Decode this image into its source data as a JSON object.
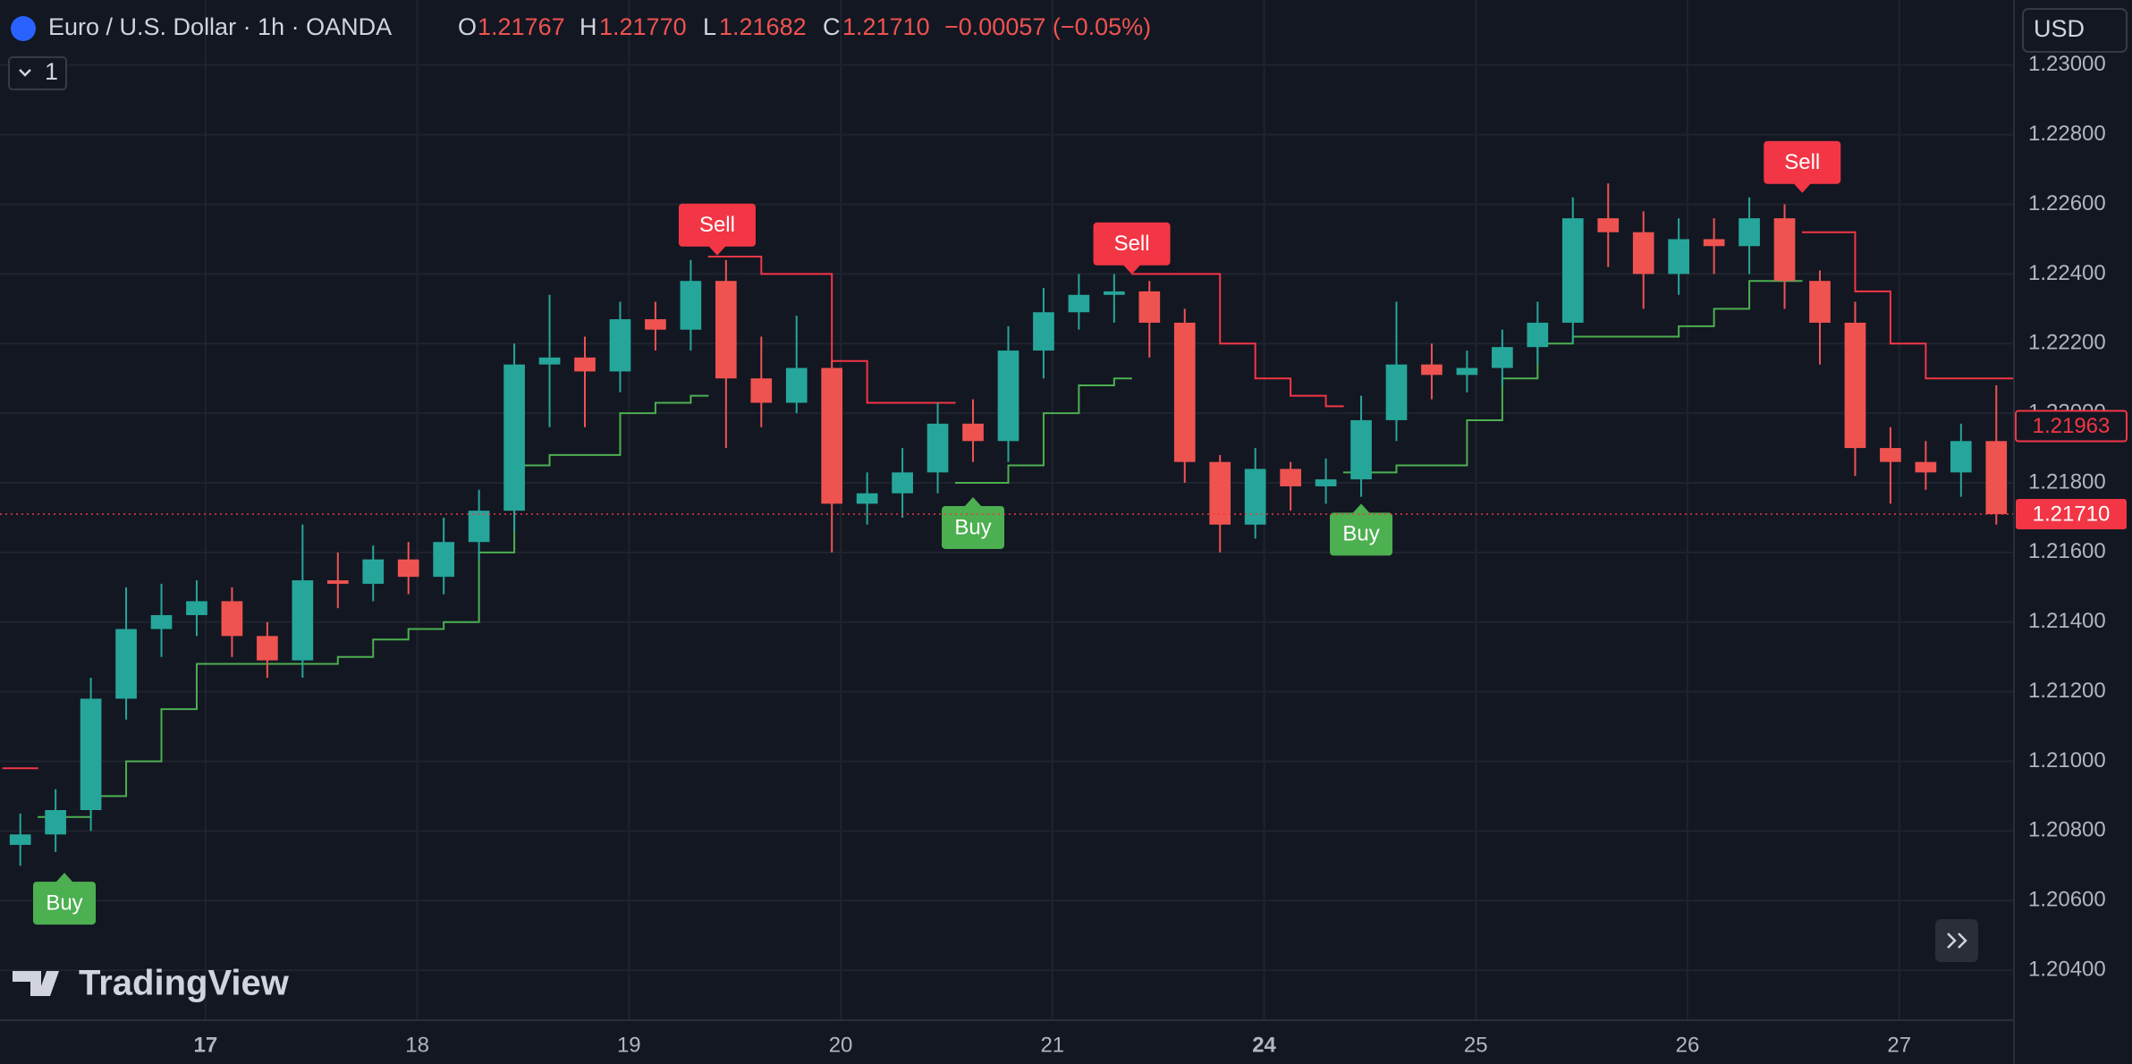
{
  "chart_data": {
    "type": "candlestick",
    "header": {
      "symbol": "Euro / U.S. Dollar · 1h · OANDA",
      "o_label": "O",
      "o": "1.21767",
      "h_label": "H",
      "h": "1.21770",
      "l_label": "L",
      "l": "1.21682",
      "c_label": "C",
      "c": "1.21710",
      "change": "−0.00057 (−0.05%)",
      "interval_count": "1",
      "currency": "USD",
      "brand": "TradingView"
    },
    "x": [
      -21,
      -17,
      -13,
      -9,
      -5,
      -1,
      3,
      7,
      11,
      15,
      19,
      23,
      27,
      31,
      35,
      39,
      43,
      47,
      51,
      55,
      59,
      63,
      67,
      71,
      75,
      79,
      83,
      87,
      91,
      95,
      99,
      103,
      107,
      111,
      115,
      119,
      123,
      127,
      131,
      135,
      139,
      143,
      147,
      151,
      155,
      159,
      163,
      167,
      171,
      175,
      179,
      183,
      187,
      191,
      195,
      199,
      203
    ],
    "opens": [
      1.2076,
      1.2079,
      1.2086,
      1.2118,
      1.2138,
      1.2142,
      1.2146,
      1.2136,
      1.2129,
      1.2152,
      1.2151,
      1.2158,
      1.2153,
      1.2163,
      1.2172,
      1.2214,
      1.2216,
      1.2212,
      1.2227,
      1.2224,
      1.2238,
      1.221,
      1.2203,
      1.2213,
      1.2174,
      1.2177,
      1.2183,
      1.2197,
      1.2192,
      1.2218,
      1.2229,
      1.2234,
      1.2235,
      1.2226,
      1.2186,
      1.2168,
      1.2184,
      1.2179,
      1.2181,
      1.2198,
      1.2214,
      1.2211,
      1.2213,
      1.2219,
      1.2226,
      1.2256,
      1.2252,
      1.224,
      1.225,
      1.2248,
      1.2256,
      1.2238,
      1.2226,
      1.219,
      1.2186,
      1.2183,
      1.2192
    ],
    "highs": [
      1.2085,
      1.2092,
      1.2124,
      1.215,
      1.2151,
      1.2152,
      1.215,
      1.214,
      1.2168,
      1.216,
      1.2162,
      1.2163,
      1.217,
      1.2178,
      1.222,
      1.2234,
      1.2222,
      1.2232,
      1.2232,
      1.2244,
      1.2244,
      1.2222,
      1.2228,
      1.2215,
      1.2183,
      1.219,
      1.2203,
      1.2204,
      1.2225,
      1.2236,
      1.224,
      1.224,
      1.2238,
      1.223,
      1.2188,
      1.219,
      1.2186,
      1.2187,
      1.2205,
      1.2232,
      1.222,
      1.2218,
      1.2224,
      1.2232,
      1.2262,
      1.2266,
      1.2258,
      1.2256,
      1.2256,
      1.2262,
      1.226,
      1.2241,
      1.2232,
      1.2196,
      1.2192,
      1.2197,
      1.2208
    ],
    "lows": [
      1.207,
      1.2074,
      1.208,
      1.2112,
      1.213,
      1.2136,
      1.213,
      1.2124,
      1.2124,
      1.2144,
      1.2146,
      1.2148,
      1.2148,
      1.2158,
      1.2166,
      1.2196,
      1.2196,
      1.2206,
      1.2218,
      1.2218,
      1.219,
      1.2196,
      1.22,
      1.216,
      1.2168,
      1.217,
      1.2177,
      1.2186,
      1.2186,
      1.221,
      1.2224,
      1.2226,
      1.2216,
      1.218,
      1.216,
      1.2164,
      1.2172,
      1.2174,
      1.2176,
      1.2192,
      1.2204,
      1.2206,
      1.2208,
      1.2214,
      1.222,
      1.2242,
      1.223,
      1.2234,
      1.224,
      1.224,
      1.223,
      1.2214,
      1.2182,
      1.2174,
      1.2178,
      1.2176,
      1.2168
    ],
    "closes": [
      1.2079,
      1.2086,
      1.2118,
      1.2138,
      1.2142,
      1.2146,
      1.2136,
      1.2129,
      1.2152,
      1.2151,
      1.2158,
      1.2153,
      1.2163,
      1.2172,
      1.2214,
      1.2216,
      1.2212,
      1.2227,
      1.2224,
      1.2238,
      1.221,
      1.2203,
      1.2213,
      1.2174,
      1.2177,
      1.2183,
      1.2197,
      1.2192,
      1.2218,
      1.2229,
      1.2234,
      1.2235,
      1.2226,
      1.2186,
      1.2168,
      1.2184,
      1.2179,
      1.2181,
      1.2198,
      1.2214,
      1.2211,
      1.2213,
      1.2219,
      1.2226,
      1.2256,
      1.2252,
      1.224,
      1.225,
      1.2248,
      1.2256,
      1.2238,
      1.2226,
      1.219,
      1.2186,
      1.2183,
      1.2192,
      1.2171
    ],
    "up_color": "#26a69a",
    "down_color": "#ef5350",
    "series": [
      {
        "color": "#4caf50",
        "values": [
          null,
          1.2084,
          1.209,
          1.21,
          1.2115,
          1.2128,
          1.2128,
          1.2128,
          1.2128,
          1.213,
          1.2135,
          1.2138,
          1.214,
          1.216,
          1.2185,
          1.2188,
          1.2188,
          1.22,
          1.2203,
          1.2205,
          null,
          null,
          null,
          null,
          null,
          null,
          null,
          1.218,
          1.2185,
          1.22,
          1.2208,
          1.221,
          null,
          null,
          null,
          null,
          null,
          null,
          1.2183,
          1.2185,
          1.2185,
          1.2198,
          1.221,
          1.222,
          1.2222,
          1.2222,
          1.2222,
          1.2225,
          1.223,
          1.2238,
          1.2238,
          null,
          null,
          null,
          null,
          null,
          null
        ]
      },
      {
        "color": "#f23645",
        "values": [
          1.2098,
          null,
          null,
          null,
          null,
          null,
          null,
          null,
          null,
          null,
          null,
          null,
          null,
          null,
          null,
          null,
          null,
          null,
          null,
          null,
          1.2245,
          1.224,
          1.224,
          1.2215,
          1.2203,
          1.2203,
          1.2203,
          null,
          null,
          null,
          null,
          null,
          1.224,
          1.224,
          1.222,
          1.221,
          1.2205,
          1.2202,
          null,
          null,
          null,
          null,
          null,
          null,
          null,
          null,
          null,
          null,
          null,
          null,
          null,
          1.2252,
          1.2235,
          1.222,
          1.221,
          1.221,
          1.221
        ]
      }
    ],
    "signals": [
      {
        "label": "Buy",
        "x": -16,
        "y": 1.2068,
        "color": "#4caf50"
      },
      {
        "label": "Sell",
        "x": 58,
        "y": 1.22453,
        "color": "#f23645"
      },
      {
        "label": "Buy",
        "x": 87,
        "y": 1.21759,
        "color": "#4caf50"
      },
      {
        "label": "Sell",
        "x": 105,
        "y": 1.22399,
        "color": "#f23645"
      },
      {
        "label": "Buy",
        "x": 131,
        "y": 1.2174,
        "color": "#4caf50"
      },
      {
        "label": "Sell",
        "x": 181,
        "y": 1.22633,
        "color": "#f23645"
      }
    ],
    "xlim": [
      -23.3,
      205
    ],
    "xticks": [
      {
        "value": 0,
        "label": "17"
      },
      {
        "value": 24,
        "label": "18"
      },
      {
        "value": 48,
        "label": "19"
      },
      {
        "value": 72,
        "label": "20"
      },
      {
        "value": 96,
        "label": "21"
      },
      {
        "value": 120,
        "label": "24"
      },
      {
        "value": 144,
        "label": "25"
      },
      {
        "value": 168,
        "label": "26"
      },
      {
        "value": 192,
        "label": "27"
      }
    ],
    "xticks_bold": [
      0,
      120
    ],
    "ylim": [
      1.20259,
      1.23187
    ],
    "yticks": [
      {
        "value": 1.204,
        "label": "1.20400"
      },
      {
        "value": 1.206,
        "label": "1.20600"
      },
      {
        "value": 1.208,
        "label": "1.20800"
      },
      {
        "value": 1.21,
        "label": "1.21000"
      },
      {
        "value": 1.212,
        "label": "1.21200"
      },
      {
        "value": 1.214,
        "label": "1.21400"
      },
      {
        "value": 1.216,
        "label": "1.21600"
      },
      {
        "value": 1.218,
        "label": "1.21800"
      },
      {
        "value": 1.22,
        "label": "1.22000"
      },
      {
        "value": 1.222,
        "label": "1.22200"
      },
      {
        "value": 1.224,
        "label": "1.22400"
      },
      {
        "value": 1.226,
        "label": "1.22600"
      },
      {
        "value": 1.228,
        "label": "1.22800"
      },
      {
        "value": 1.23,
        "label": "1.23000"
      }
    ],
    "grid": true,
    "indicator_price": 1.21963,
    "last_price": {
      "value": 1.2171,
      "label": "1.21710",
      "color": "#f23645"
    }
  }
}
